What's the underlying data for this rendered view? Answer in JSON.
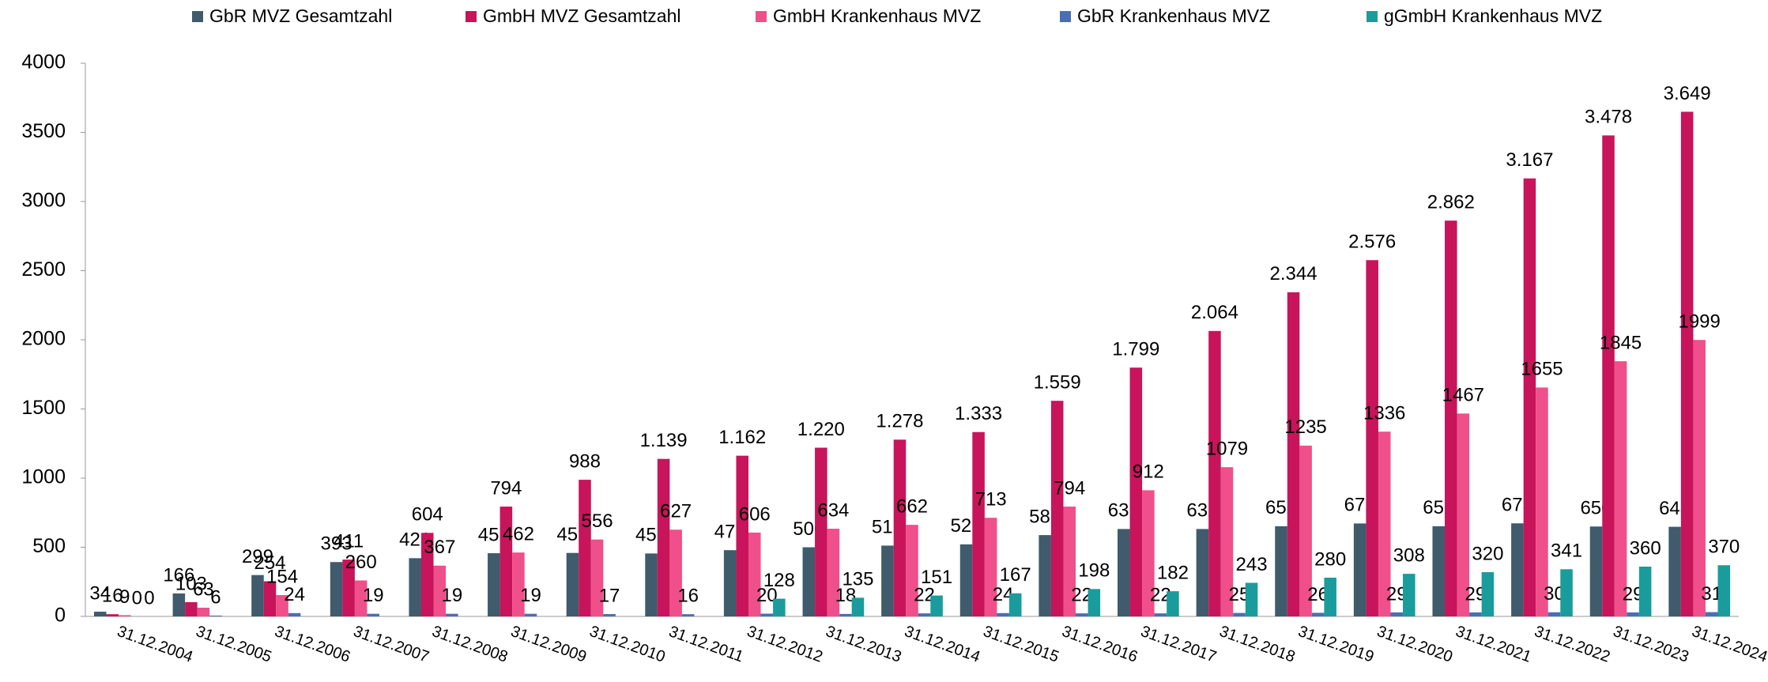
{
  "chart_data": {
    "type": "bar",
    "categories": [
      "31.12.2004",
      "31.12.2005",
      "31.12.2006",
      "31.12.2007",
      "31.12.2008",
      "31.12.2009",
      "31.12.2010",
      "31.12.2011",
      "31.12.2012",
      "31.12.2013",
      "31.12.2014",
      "31.12.2015",
      "31.12.2016",
      "31.12.2017",
      "31.12.2018",
      "31.12.2019",
      "31.12.2020",
      "31.12.2021",
      "31.12.2022",
      "31.12.2023",
      "31.12.2024"
    ],
    "series": [
      {
        "name": "GbR MVZ Gesamtzahl",
        "color": "#3f5b6c",
        "values": [
          34,
          166,
          299,
          393,
          421,
          457,
          459,
          455,
          479,
          500,
          512,
          521,
          588,
          632,
          632,
          652,
          672,
          652,
          673,
          650,
          648
        ]
      },
      {
        "name": "GmbH MVZ Gesamtzahl",
        "color": "#c8145a",
        "values": [
          16,
          103,
          254,
          411,
          604,
          794,
          988,
          1139,
          1162,
          1220,
          1278,
          1333,
          1559,
          1799,
          2064,
          2344,
          2576,
          2862,
          3167,
          3478,
          3649
        ],
        "value_labels": [
          "16",
          "103",
          "254",
          "411",
          "604",
          "794",
          "988",
          "1.139",
          "1.162",
          "1.220",
          "1.278",
          "1.333",
          "1.559",
          "1.799",
          "2.064",
          "2.344",
          "2.576",
          "2.862",
          "3.167",
          "3.478",
          "3.649"
        ]
      },
      {
        "name": "GmbH Krankenhaus MVZ",
        "color": "#ef4f8a",
        "values": [
          9,
          63,
          154,
          260,
          367,
          462,
          556,
          627,
          606,
          634,
          662,
          713,
          794,
          912,
          1079,
          1235,
          1336,
          1467,
          1655,
          1845,
          1999
        ]
      },
      {
        "name": "GbR Krankenhaus MVZ",
        "color": "#4a6eb4",
        "values": [
          0,
          6,
          24,
          19,
          19,
          19,
          17,
          16,
          20,
          18,
          22,
          24,
          22,
          22,
          25,
          26,
          29,
          29,
          30,
          29,
          31
        ]
      },
      {
        "name": "gGmbH Krankenhaus MVZ",
        "color": "#1a9c9c",
        "values": [
          0,
          null,
          null,
          null,
          null,
          null,
          null,
          null,
          128,
          135,
          151,
          167,
          198,
          182,
          243,
          280,
          308,
          320,
          341,
          360,
          370
        ]
      }
    ],
    "ylim": [
      0,
      4000
    ],
    "yticks": [
      0,
      500,
      1000,
      1500,
      2000,
      2500,
      3000,
      3500,
      4000
    ],
    "grid": false,
    "legend": "top"
  }
}
